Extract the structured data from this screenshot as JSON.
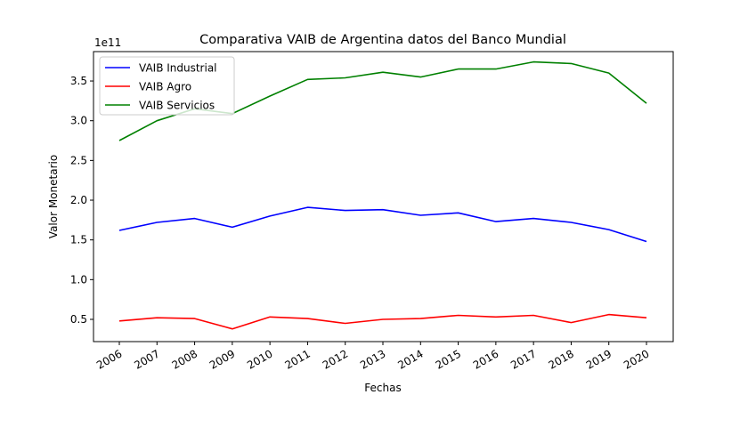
{
  "chart_data": {
    "type": "line",
    "title": "Comparativa VAIB de Argentina datos del Banco Mundial",
    "xlabel": "Fechas",
    "ylabel": "Valor Monetario",
    "y_offset_label": "1e11",
    "categories": [
      "2006",
      "2007",
      "2008",
      "2009",
      "2010",
      "2011",
      "2012",
      "2013",
      "2014",
      "2015",
      "2016",
      "2017",
      "2018",
      "2019",
      "2020"
    ],
    "y_ticks": [
      "0.5",
      "1.0",
      "1.5",
      "2.0",
      "2.5",
      "3.0",
      "3.5"
    ],
    "y_tick_values": [
      0.5,
      1.0,
      1.5,
      2.0,
      2.5,
      3.0,
      3.5
    ],
    "ylim": [
      0.22,
      3.87
    ],
    "legend_position": "upper-left",
    "grid": false,
    "series": [
      {
        "name": "VAIB Industrial",
        "color": "#0000ff",
        "values": [
          1.62,
          1.72,
          1.77,
          1.66,
          1.8,
          1.91,
          1.87,
          1.88,
          1.81,
          1.84,
          1.73,
          1.77,
          1.72,
          1.63,
          1.48
        ]
      },
      {
        "name": "VAIB Agro",
        "color": "#ff0000",
        "values": [
          0.48,
          0.52,
          0.51,
          0.38,
          0.53,
          0.51,
          0.45,
          0.5,
          0.51,
          0.55,
          0.53,
          0.55,
          0.46,
          0.56,
          0.52
        ]
      },
      {
        "name": "VAIB Servicios",
        "color": "#008000",
        "values": [
          2.75,
          3.0,
          3.15,
          3.09,
          3.31,
          3.52,
          3.54,
          3.61,
          3.55,
          3.65,
          3.65,
          3.74,
          3.72,
          3.6,
          3.22
        ]
      }
    ]
  }
}
